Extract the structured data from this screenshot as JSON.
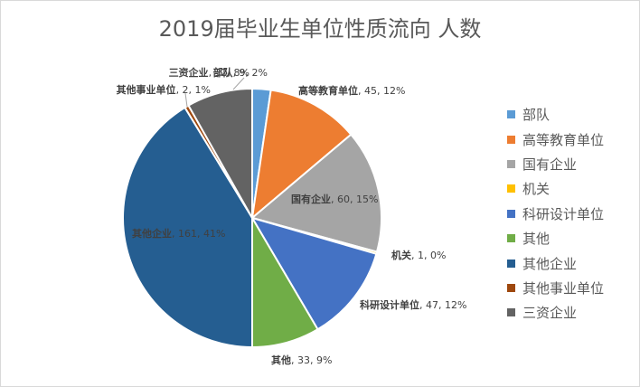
{
  "chart_data": {
    "type": "pie",
    "title": "2019届毕业生单位性质流向 人数",
    "legend_position": "right",
    "slices": [
      {
        "label": "部队",
        "value": 9,
        "percent": "2%",
        "color": "#5B9BD5"
      },
      {
        "label": "高等教育单位",
        "value": 45,
        "percent": "12%",
        "color": "#ED7D31"
      },
      {
        "label": "国有企业",
        "value": 60,
        "percent": "15%",
        "color": "#A5A5A5"
      },
      {
        "label": "机关",
        "value": 1,
        "percent": "0%",
        "color": "#FFC000"
      },
      {
        "label": "科研设计单位",
        "value": 47,
        "percent": "12%",
        "color": "#4472C4"
      },
      {
        "label": "其他",
        "value": 33,
        "percent": "9%",
        "color": "#70AD47"
      },
      {
        "label": "其他企业",
        "value": 161,
        "percent": "41%",
        "color": "#255E91"
      },
      {
        "label": "其他事业单位",
        "value": 2,
        "percent": "1%",
        "color": "#9E480E"
      },
      {
        "label": "三资企业",
        "value": 32,
        "percent": "8%",
        "color": "#636363"
      }
    ]
  }
}
